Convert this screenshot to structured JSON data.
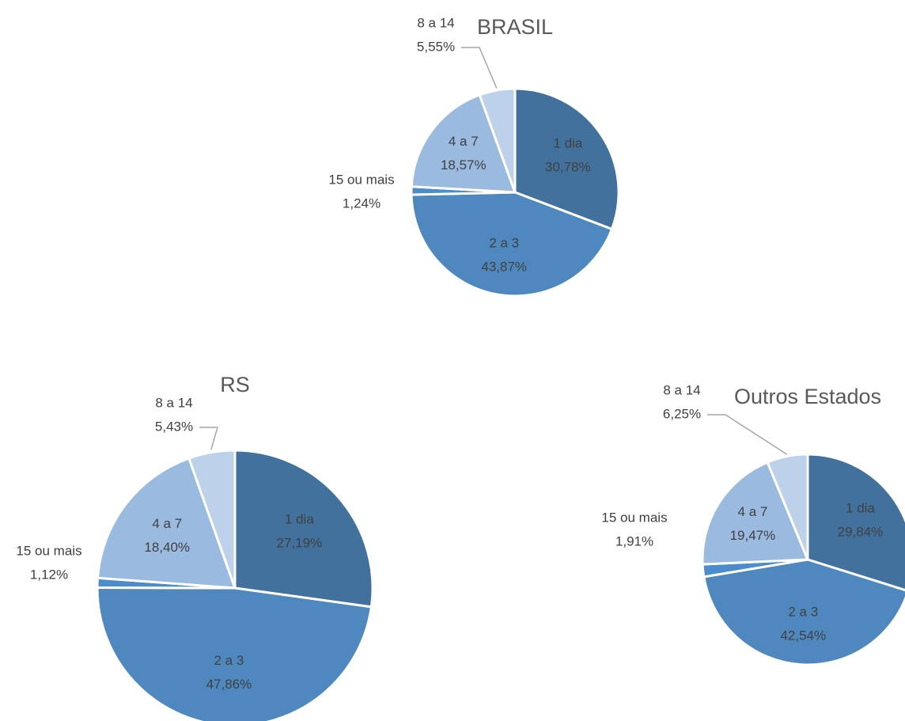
{
  "chart_data": [
    {
      "type": "pie",
      "title": "BRASIL",
      "categories": [
        "1 dia",
        "2 a 3",
        "15 ou mais",
        "4 a 7",
        "8 a 14"
      ],
      "values": [
        30.78,
        43.87,
        1.24,
        18.57,
        5.55
      ],
      "value_labels": [
        "30,78%",
        "43,87%",
        "1,24%",
        "18,57%",
        "5,55%"
      ],
      "colors": [
        "#41719c",
        "#4e88bf",
        "#4a8ccc",
        "#9abae0",
        "#bdd1eb"
      ]
    },
    {
      "type": "pie",
      "title": "RS",
      "categories": [
        "1 dia",
        "2 a 3",
        "15 ou mais",
        "4 a 7",
        "8 a 14"
      ],
      "values": [
        27.19,
        47.86,
        1.12,
        18.4,
        5.43
      ],
      "value_labels": [
        "27,19%",
        "47,86%",
        "1,12%",
        "18,40%",
        "5,43%"
      ],
      "colors": [
        "#41719c",
        "#4e88bf",
        "#4a8ccc",
        "#9abae0",
        "#bdd1eb"
      ]
    },
    {
      "type": "pie",
      "title": "Outros Estados",
      "categories": [
        "1 dia",
        "2 a 3",
        "15 ou mais",
        "4 a 7",
        "8 a 14"
      ],
      "values": [
        29.84,
        42.54,
        1.91,
        19.47,
        6.25
      ],
      "value_labels": [
        "29,84%",
        "42,54%",
        "1,91%",
        "19,47%",
        "6,25%"
      ],
      "colors": [
        "#41719c",
        "#4e88bf",
        "#4a8ccc",
        "#9abae0",
        "#bdd1eb"
      ]
    }
  ]
}
